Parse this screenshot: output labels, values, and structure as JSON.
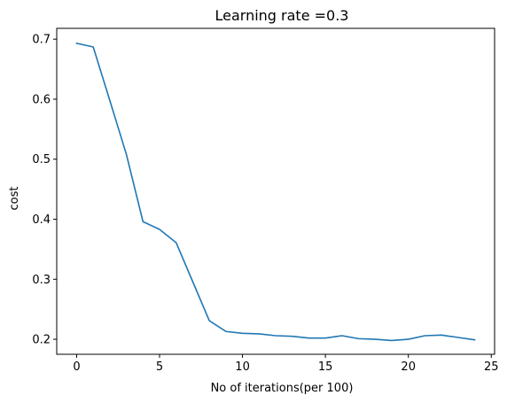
{
  "chart_data": {
    "type": "line",
    "title": "Learning rate =0.3",
    "xlabel": "No of iterations(per 100)",
    "ylabel": "cost",
    "xlim": [
      -1.2,
      25.2
    ],
    "ylim": [
      0.175,
      0.718
    ],
    "x_ticks": [
      0,
      5,
      10,
      15,
      20,
      25
    ],
    "x_tick_labels": [
      "0",
      "5",
      "10",
      "15",
      "20",
      "25"
    ],
    "y_ticks": [
      0.2,
      0.3,
      0.4,
      0.5,
      0.6,
      0.7
    ],
    "y_tick_labels": [
      "0.2",
      "0.3",
      "0.4",
      "0.5",
      "0.6",
      "0.7"
    ],
    "grid": false,
    "legend": "none",
    "series": [
      {
        "color": "#1f77b4",
        "x": [
          0,
          1,
          2,
          3,
          4,
          5,
          6,
          7,
          8,
          9,
          10,
          11,
          12,
          13,
          14,
          15,
          16,
          17,
          18,
          19,
          20,
          21,
          22,
          23,
          24
        ],
        "y": [
          0.693,
          0.687,
          0.598,
          0.508,
          0.396,
          0.383,
          0.361,
          0.296,
          0.231,
          0.213,
          0.21,
          0.209,
          0.206,
          0.205,
          0.202,
          0.202,
          0.206,
          0.201,
          0.2,
          0.198,
          0.2,
          0.206,
          0.207,
          0.203,
          0.199
        ]
      }
    ]
  }
}
